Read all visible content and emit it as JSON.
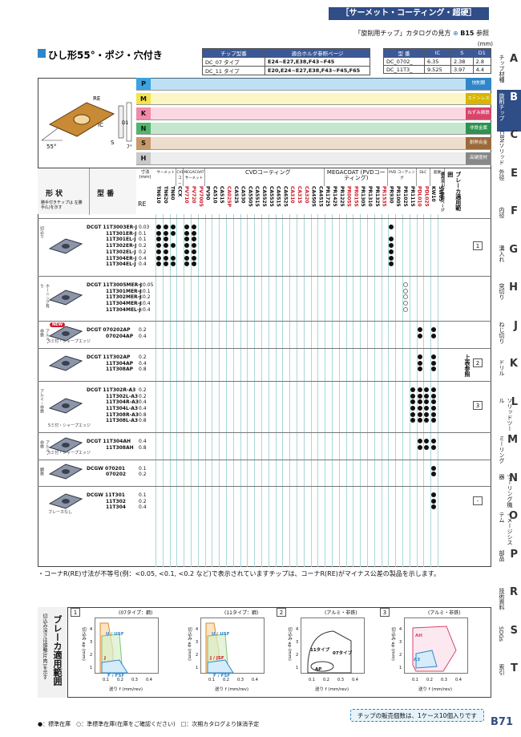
{
  "header": {
    "category_title": "［サーメット・コーティング・超硬］",
    "catalog_ref_prefix": "「旋削用チップ」カタログの見方",
    "catalog_ref_link": "B15",
    "catalog_ref_suffix": "参照",
    "unit": "(mm)"
  },
  "section": {
    "title": "ひし形55°・ポジ・穴付き"
  },
  "holder_table": {
    "h1": "チップ型番",
    "h2": "適合ホルダ参照ページ",
    "rows": [
      {
        "a": "DC_07 タイプ",
        "b": "E24~E27,E38,F43~F45"
      },
      {
        "a": "DC_11 タイプ",
        "b": "E20,E24~E27,E38,F43~F45,F65"
      }
    ]
  },
  "dim_table": {
    "headers": [
      "型 番",
      "IC",
      "S",
      "D1"
    ],
    "rows": [
      [
        "DC_0702_",
        "6.35",
        "2.38",
        "2.8"
      ],
      [
        "DC_11T3_",
        "9.525",
        "3.97",
        "4.4"
      ]
    ]
  },
  "diagram_labels": {
    "re": "RE",
    "ic": "IC",
    "s": "S",
    "d1": "D1",
    "angle": "55°",
    "t": "7°"
  },
  "bands": [
    {
      "code": "P",
      "color": "#3ba3df",
      "right": "快削鋼",
      "rcolor": "#2f86c8"
    },
    {
      "code": "M",
      "color": "#f4e34a",
      "right": "ステンレス鋼",
      "rcolor": "#d8b500"
    },
    {
      "code": "K",
      "color": "#f08aa8",
      "right": "ねずみ鋳鉄",
      "rcolor": "#d8446a"
    },
    {
      "code": "N",
      "color": "#50b66b",
      "right": "非鉄金属",
      "rcolor": "#2f9150"
    },
    {
      "code": "S",
      "color": "#c89a6a",
      "right": "耐熱合金",
      "rcolor": "#9c6a3a"
    },
    {
      "code": "H",
      "color": "#c9c9c9",
      "right": "高硬度材",
      "rcolor": "#888888"
    }
  ],
  "col_headers": {
    "shape": "形 状",
    "shape_sub": "勝手付きチップは 左勝手(L)を示す",
    "model": "型 番",
    "dim": "寸法 (mm)",
    "re": "RE",
    "group_cermet": "サーメット",
    "group_cvd_cermet": "CVD コーティング サーメット",
    "group_megacoat_cermet": "MEGACOAT サーメット",
    "group_cvd": "CVDコーティング",
    "group_megacoat": "MEGACOAT (PVDコーティング)",
    "group_pvd": "PVD コーティング",
    "group_dlc": "DLC",
    "group_carbide": "超硬",
    "breaker_ref": "ブレーカ適用範囲",
    "holder_ref": "適合ホルダ参照ページ"
  },
  "grades": [
    "TN610",
    "TN620",
    "TN60",
    "CCX",
    "PV710",
    "PV720",
    "PV7005",
    "PV90",
    "CA510",
    "CA515",
    "CA025P",
    "CA525",
    "CA530",
    "CA5505",
    "CA5515",
    "CA5525",
    "CA5535",
    "CA6515",
    "CA6525",
    "CA310",
    "CA315",
    "CA320",
    "CA4505",
    "CA4515",
    "PR1725",
    "PR1425",
    "PR1225",
    "PR005S",
    "PR015S",
    "PR1305",
    "PR1310",
    "PR1325",
    "PR1535",
    "PR930",
    "PR1005",
    "PR1025",
    "PR1115",
    "PDL010",
    "PDL025",
    "KW10",
    "SW05"
  ],
  "groups": [
    {
      "shape_note": "切込り",
      "rows": [
        {
          "model": "DCGT 11T3003ER-J",
          "re": "0.03"
        },
        {
          "model": "11T301ER-J",
          "re": "0.1"
        },
        {
          "model": "11T301EL-J",
          "re": "0.1"
        },
        {
          "model": "11T302ER-J",
          "re": "0.2"
        },
        {
          "model": "11T302EL-J",
          "re": "0.2"
        },
        {
          "model": "11T304ER-J",
          "re": "0.4"
        },
        {
          "model": "11T304EL-J",
          "re": "0.4"
        }
      ],
      "breaker_tag": "1"
    },
    {
      "shape_note": "ホーニング有り",
      "rows": [
        {
          "model": "DCGT 11T3005MER-J",
          "re": "<0.05"
        },
        {
          "model": "11T301MER-J",
          "re": "<0.1"
        },
        {
          "model": "11T302MER-J",
          "re": "<0.2"
        },
        {
          "model": "11T304MER-J",
          "re": "<0.4"
        },
        {
          "model": "11T304MEL-J",
          "re": "<0.4"
        }
      ]
    },
    {
      "shape_note": "アルミ・非鉄",
      "badge": "NEW",
      "rows": [
        {
          "model": "DCGT 070202AP",
          "re": "0.2"
        },
        {
          "model": "070204AP",
          "re": "0.4"
        }
      ],
      "sub_note": "5ミ付・シャープエッジ"
    },
    {
      "rows": [
        {
          "model": "DCGT 11T302AP",
          "re": "0.2"
        },
        {
          "model": "11T304AP",
          "re": "0.4"
        },
        {
          "model": "11T308AP",
          "re": "0.8"
        }
      ],
      "breaker_tag": "2",
      "holder_note": "上表参照"
    },
    {
      "shape_note": "アルミ・非鉄",
      "rows": [
        {
          "model": "DCGT 11T302R-A3",
          "re": "0.2"
        },
        {
          "model": "11T302L-A3",
          "re": "0.2"
        },
        {
          "model": "11T304R-A3",
          "re": "0.4"
        },
        {
          "model": "11T304L-A3",
          "re": "0.4"
        },
        {
          "model": "11T308R-A3",
          "re": "0.8"
        },
        {
          "model": "11T308L-A3",
          "re": "0.8"
        }
      ],
      "sub_note": "5ミ付・シャープエッジ",
      "breaker_tag": "3"
    },
    {
      "shape_note": "アルミ・非鉄",
      "rows": [
        {
          "model": "DCGT 11T304AH",
          "re": "0.4"
        },
        {
          "model": "11T308AH",
          "re": "0.8"
        }
      ],
      "sub_note": "5ミ付・シャープエッジ"
    },
    {
      "shape_note": "鋼鉄",
      "rows": [
        {
          "model": "DCGW 070201",
          "re": "0.1"
        },
        {
          "model": "070202",
          "re": "0.2"
        }
      ]
    },
    {
      "rows": [
        {
          "model": "DCGW 11T301",
          "re": "0.1"
        },
        {
          "model": "11T302",
          "re": "0.2"
        },
        {
          "model": "11T304",
          "re": "0.4"
        }
      ],
      "sub_note": "ブレーカなし",
      "breaker_tag": "-"
    }
  ],
  "note": "・コーナR(RE)寸法が不等号(例：<0.05, <0.1, <0.2 など)で表示されていますチップは、コーナR(RE)がマイナス公差の製品を示します。",
  "breaker_section": {
    "title": "ブレーカ適用範囲",
    "side_note": "切込み深さは縦軸(片肉)を示す",
    "panels": [
      {
        "num": "1",
        "sub": "(07タイプ：鋼)",
        "curves": [
          "U / USF",
          "J",
          "F / FSF"
        ]
      },
      {
        "sub": "(11タイプ：鋼)",
        "curves": [
          "U / USF",
          "J / JSF",
          "F / FSF"
        ]
      },
      {
        "num": "2",
        "sub": "(アルミ・非鉄)",
        "curves": [
          "11タイプ",
          "07タイプ",
          "AP"
        ]
      },
      {
        "num": "3",
        "sub": "(アルミ・非鉄)",
        "curves": [
          "AH",
          "A3"
        ]
      }
    ],
    "xlabel": "送り f (mm/rev)",
    "ylabel": "切込み ap (mm)",
    "xticks": [
      "0.1",
      "0.2",
      "0.3",
      "0.4"
    ],
    "yticks": [
      "1",
      "2",
      "3",
      "4"
    ]
  },
  "footer": {
    "legend": "●：標準在庫　○：準標準在庫(在庫をご確認ください)　□：次期カタログより抹消予定",
    "pill": "チップの販売個数は、1ケース10個入りです",
    "page": "B71"
  },
  "side_tabs": [
    {
      "letter": "A",
      "label": "チップ材種"
    },
    {
      "letter": "B",
      "label": "旋削チップ",
      "active": true
    },
    {
      "letter": "C",
      "label": "CBNソリッド"
    },
    {
      "letter": "E",
      "label": "外径"
    },
    {
      "letter": "F",
      "label": "内径"
    },
    {
      "letter": "G",
      "label": "溝入れ"
    },
    {
      "letter": "H",
      "label": "突切り"
    },
    {
      "letter": "J",
      "label": "ねじ切り"
    },
    {
      "letter": "K",
      "label": "ドリル"
    },
    {
      "letter": "L",
      "label": "ソリッドツール"
    },
    {
      "letter": "M",
      "label": "ミーリング"
    },
    {
      "letter": "N",
      "label": "ツーリング機器"
    },
    {
      "letter": "O",
      "label": "イメージシステム"
    },
    {
      "letter": "P",
      "label": "部品"
    },
    {
      "letter": "R",
      "label": "技術資料"
    },
    {
      "letter": "S",
      "label": "SDGs"
    },
    {
      "letter": "T",
      "label": "索引"
    }
  ],
  "colors": {
    "accent": "#2f4d86",
    "grid": "#a8d8d8",
    "red": "#d01a2a"
  }
}
